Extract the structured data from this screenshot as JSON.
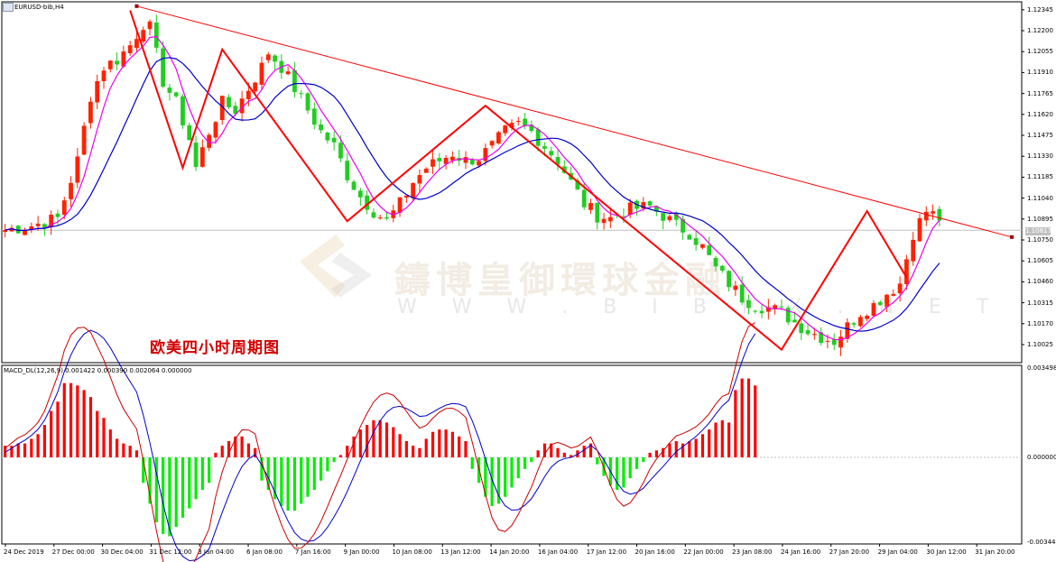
{
  "window": {
    "symbol": "EURUSD-bib,H4"
  },
  "caption": "欧美四小时周期图",
  "watermark": {
    "cn": "鑄博皇御環球金融",
    "en": "W W W . B I B F X . N E T"
  },
  "current_price": "1.10817",
  "macd": {
    "title": "MACD_DL(12,26,9) 0.001422 0.000390 0.002064 0.000000",
    "axis_labels": [
      "0.003498",
      "0.000000",
      "-0.003443"
    ]
  },
  "colors": {
    "bull": "#ff2200",
    "bear": "#22cc22",
    "ma_fast": "#ee00ee",
    "ma_slow": "#0000cc",
    "trend": "#ff0000",
    "hist_pos": "#ff0000",
    "hist_neg": "#00ee00"
  },
  "chart_data": {
    "type": "line",
    "price_axis": {
      "range": [
        1.099,
        1.124
      ],
      "ticks": [
        "1.12345",
        "1.12200",
        "1.12055",
        "1.11910",
        "1.11765",
        "1.11620",
        "1.11475",
        "1.11330",
        "1.11185",
        "1.11040",
        "1.10895",
        "1.10750",
        "1.10605",
        "1.10460",
        "1.10315",
        "1.10170",
        "1.10025"
      ]
    },
    "time_axis": {
      "labels": [
        "24 Dec 2019",
        "27 Dec 00:00",
        "30 Dec 04:00",
        "31 Dec 12:00",
        "3 Jan 04:00",
        "6 Jan 08:00",
        "7 Jan 16:00",
        "9 Jan 00:00",
        "10 Jan 08:00",
        "13 Jan 12:00",
        "14 Jan 20:00",
        "16 Jan 04:00",
        "17 Jan 12:00",
        "20 Jan 16:00",
        "22 Jan 00:00",
        "23 Jan 08:00",
        "24 Jan 16:00",
        "27 Jan 20:00",
        "29 Jan 04:00",
        "30 Jan 12:00",
        "31 Jan 20:00"
      ]
    },
    "price_path": [
      [
        0,
        1.1082
      ],
      [
        4,
        1.1085
      ],
      [
        8,
        1.109
      ],
      [
        11,
        1.113
      ],
      [
        13,
        1.1175
      ],
      [
        15,
        1.1195
      ],
      [
        17,
        1.12
      ],
      [
        19,
        1.121
      ],
      [
        21,
        1.1225
      ],
      [
        22,
        1.1222
      ],
      [
        24,
        1.1185
      ],
      [
        26,
        1.117
      ],
      [
        28,
        1.1145
      ],
      [
        29,
        1.1125
      ],
      [
        31,
        1.115
      ],
      [
        33,
        1.117
      ],
      [
        35,
        1.1165
      ],
      [
        37,
        1.118
      ],
      [
        39,
        1.1195
      ],
      [
        40,
        1.1205
      ],
      [
        42,
        1.1195
      ],
      [
        44,
        1.118
      ],
      [
        46,
        1.1165
      ],
      [
        48,
        1.115
      ],
      [
        50,
        1.114
      ],
      [
        52,
        1.112
      ],
      [
        54,
        1.1105
      ],
      [
        56,
        1.1095
      ],
      [
        58,
        1.1088
      ],
      [
        60,
        1.11
      ],
      [
        62,
        1.1115
      ],
      [
        64,
        1.1125
      ],
      [
        66,
        1.113
      ],
      [
        68,
        1.1135
      ],
      [
        70,
        1.113
      ],
      [
        72,
        1.1132
      ],
      [
        74,
        1.114
      ],
      [
        76,
        1.115
      ],
      [
        78,
        1.1155
      ],
      [
        80,
        1.115
      ],
      [
        82,
        1.114
      ],
      [
        84,
        1.113
      ],
      [
        86,
        1.1115
      ],
      [
        88,
        1.11
      ],
      [
        90,
        1.1092
      ],
      [
        92,
        1.109
      ],
      [
        94,
        1.1095
      ],
      [
        96,
        1.1097
      ],
      [
        98,
        1.1098
      ],
      [
        100,
        1.1092
      ],
      [
        102,
        1.1085
      ],
      [
        104,
        1.108
      ],
      [
        106,
        1.107
      ],
      [
        108,
        1.1055
      ],
      [
        110,
        1.1045
      ],
      [
        112,
        1.1035
      ],
      [
        114,
        1.103
      ],
      [
        116,
        1.1028
      ],
      [
        118,
        1.1025
      ],
      [
        120,
        1.1018
      ],
      [
        122,
        1.1012
      ],
      [
        124,
        1.1008
      ],
      [
        126,
        1.1005
      ],
      [
        128,
        1.1015
      ],
      [
        130,
        1.1025
      ],
      [
        132,
        1.103
      ],
      [
        134,
        1.1038
      ],
      [
        136,
        1.1045
      ],
      [
        138,
        1.108
      ],
      [
        140,
        1.1095
      ],
      [
        142,
        1.109
      ]
    ],
    "trendlines": [
      {
        "points": [
          [
            20,
            1.1237
          ],
          [
            153,
            1.1077
          ]
        ]
      },
      {
        "points": [
          [
            19,
            1.1234
          ],
          [
            27,
            1.1125
          ],
          [
            33,
            1.1207
          ],
          [
            52,
            1.1088
          ],
          [
            73,
            1.1168
          ],
          [
            118,
            1.0999
          ],
          [
            131,
            1.1095
          ],
          [
            137,
            1.1049
          ]
        ]
      }
    ],
    "macd_hist": [
      0.0005,
      0.0005,
      0.0006,
      0.0006,
      0.0008,
      0.001,
      0.0014,
      0.002,
      0.0024,
      0.0032,
      0.0032,
      0.0031,
      0.0029,
      0.0026,
      0.002,
      0.0017,
      0.0012,
      0.0008,
      0.0006,
      0.0005,
      0.0003,
      -0.0011,
      -0.002,
      -0.0028,
      -0.0033,
      -0.0034,
      -0.003,
      -0.0026,
      -0.0022,
      -0.0018,
      -0.0014,
      -0.0011,
      0.0002,
      0.0005,
      0.0007,
      0.0009,
      0.0009,
      0.0006,
      0.0004,
      -0.001,
      -0.0014,
      -0.0018,
      -0.0021,
      -0.0023,
      -0.0023,
      -0.002,
      -0.0017,
      -0.0014,
      -0.001,
      -0.0006,
      -0.0002,
      0.0001,
      0.0005,
      0.0009,
      0.0012,
      0.0014,
      0.0016,
      0.0016,
      0.0015,
      0.0013,
      0.001,
      0.0007,
      0.0005,
      0.0004,
      0.0008,
      0.0011,
      0.0012,
      0.0012,
      0.0011,
      0.0009,
      0.0007,
      -0.0005,
      -0.0011,
      -0.0017,
      -0.0021,
      -0.002,
      -0.0017,
      -0.0013,
      -0.0009,
      -0.0005,
      -0.0002,
      0.0003,
      0.0006,
      0.0006,
      0.0004,
      0.0002,
      0.0001,
      0.0003,
      0.0005,
      0.0006,
      -0.0003,
      -0.0008,
      -0.0012,
      -0.0014,
      -0.0013,
      -0.0009,
      -0.0005,
      -0.0002,
      0.0002,
      0.0003,
      0.0004,
      0.0006,
      0.0007,
      0.0006,
      0.0007,
      0.0008,
      0.001,
      0.0012,
      0.0015,
      0.0016,
      0.0015,
      0.0029,
      0.0034,
      0.0034,
      0.0031
    ]
  }
}
